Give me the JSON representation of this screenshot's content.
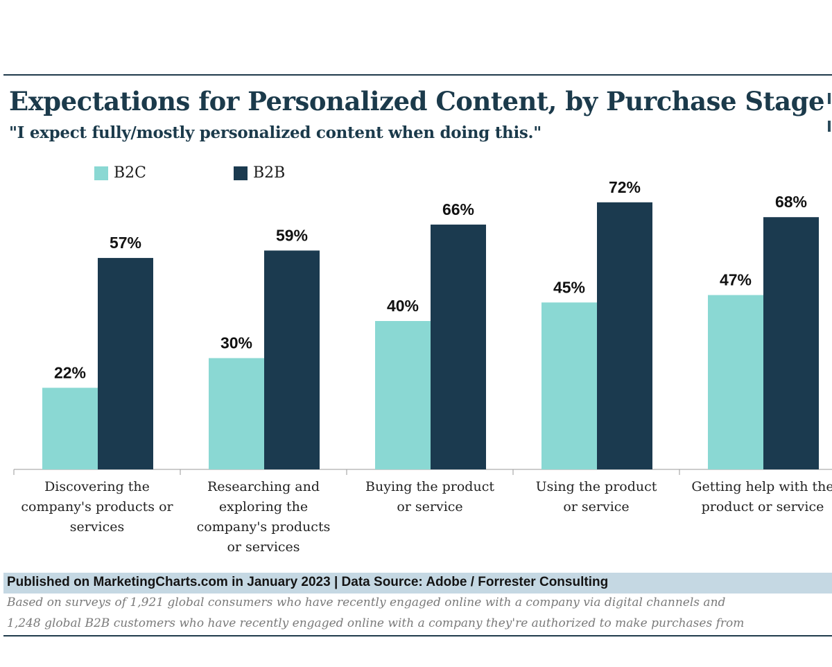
{
  "header": {
    "title": "Expectations for Personalized Content, by Purchase Stage",
    "subtitle": "\"I expect fully/mostly personalized content when doing this.\""
  },
  "chart_data": {
    "type": "bar",
    "title": "Expectations for Personalized Content, by Purchase Stage",
    "subtitle": "\"I expect fully/mostly personalized content when doing this.\"",
    "categories": [
      "Discovering the company's products or services",
      "Researching and exploring the company's products or services",
      "Buying the product or service",
      "Using the product or service",
      "Getting help with the product or service"
    ],
    "category_labels_display": [
      "Discovering the\ncompany's products or\nservices",
      "Researching and\nexploring the\ncompany's products\nor services",
      "Buying the product\nor service",
      "Using the product\nor service",
      "Getting help with the\nproduct or service"
    ],
    "series": [
      {
        "name": "B2C",
        "color": "#8ad8d3",
        "values": [
          22,
          30,
          40,
          45,
          47
        ],
        "labels": [
          "22%",
          "30%",
          "40%",
          "45%",
          "47%"
        ]
      },
      {
        "name": "B2B",
        "color": "#1b3a4f",
        "values": [
          57,
          59,
          66,
          72,
          68
        ],
        "labels": [
          "57%",
          "59%",
          "66%",
          "72%",
          "68%"
        ]
      }
    ],
    "unit": "%",
    "ylim": [
      0,
      80
    ],
    "grid": false,
    "legend_position": "top-left",
    "xlabel": "",
    "ylabel": ""
  },
  "footer": {
    "source": "Published on MarketingCharts.com in January 2023 | Data Source: Adobe / Forrester Consulting",
    "note_line1": "Based on surveys of 1,921 global consumers who have recently engaged online with a company via digital channels and",
    "note_line2": "1,248 global B2B customers who have recently engaged online with a company they're authorized to make purchases from"
  },
  "colors": {
    "title": "#1b3a4b",
    "b2c": "#8ad8d3",
    "b2b": "#1b3a4f",
    "footer_band": "#c5d8e3"
  }
}
